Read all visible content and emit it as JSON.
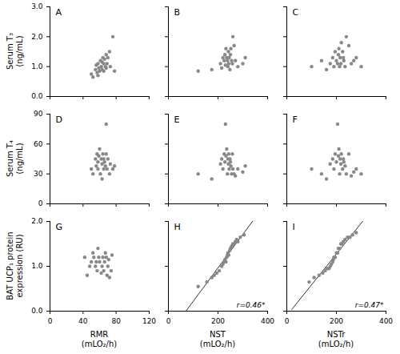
{
  "chart_data": [
    {
      "type": "scatter",
      "title": "A",
      "ylabel": "Serum T₃\n(ng/mL)",
      "color": "#888888",
      "tick_labels": "y",
      "x": [
        50,
        52,
        55,
        56,
        57,
        58,
        58,
        59,
        60,
        61,
        62,
        63,
        63,
        64,
        65,
        65,
        66,
        67,
        68,
        68,
        69,
        70,
        72,
        73,
        76,
        78
      ],
      "values": [
        0.75,
        0.65,
        0.9,
        1.05,
        0.8,
        0.7,
        1.1,
        0.95,
        0.85,
        1.2,
        1.0,
        1.15,
        0.9,
        1.3,
        1.1,
        0.85,
        1.25,
        1.0,
        1.4,
        0.95,
        1.1,
        1.3,
        1.5,
        1.0,
        2.0,
        0.85
      ],
      "xlim": [
        0,
        120
      ],
      "xticks": [
        0,
        40,
        80,
        120
      ],
      "ylim": [
        0,
        3
      ],
      "yticks": [
        0,
        1,
        2,
        3
      ]
    },
    {
      "type": "scatter",
      "title": "B",
      "color": "#888888",
      "tick_labels": false,
      "x": [
        120,
        175,
        210,
        215,
        220,
        225,
        228,
        230,
        232,
        235,
        238,
        240,
        242,
        243,
        245,
        248,
        250,
        252,
        255,
        258,
        260,
        265,
        270,
        280,
        300,
        310
      ],
      "values": [
        0.85,
        0.9,
        1.1,
        0.95,
        1.3,
        1.2,
        1.4,
        1.05,
        1.6,
        1.3,
        1.2,
        1.0,
        1.5,
        1.1,
        1.3,
        0.9,
        1.4,
        1.6,
        1.2,
        1.1,
        2.0,
        1.7,
        1.2,
        1.0,
        1.1,
        1.3
      ],
      "xlim": [
        0,
        400
      ],
      "xticks": [
        0,
        200,
        400
      ],
      "ylim": [
        0,
        3
      ],
      "yticks": [
        0,
        1,
        2,
        3
      ]
    },
    {
      "type": "scatter",
      "title": "C",
      "color": "#888888",
      "tick_labels": false,
      "x": [
        100,
        140,
        160,
        175,
        185,
        190,
        195,
        200,
        205,
        208,
        210,
        213,
        215,
        218,
        220,
        225,
        228,
        230,
        235,
        240,
        250,
        260,
        270,
        280,
        300
      ],
      "values": [
        1.0,
        1.2,
        0.9,
        1.1,
        1.3,
        1.0,
        1.5,
        1.2,
        1.1,
        1.4,
        1.6,
        1.0,
        1.3,
        1.1,
        1.8,
        1.5,
        1.3,
        1.2,
        1.0,
        2.0,
        1.7,
        1.1,
        1.2,
        1.3,
        1.0
      ],
      "xlim": [
        0,
        400
      ],
      "xticks": [
        0,
        200,
        400
      ],
      "ylim": [
        0,
        3
      ],
      "yticks": [
        0,
        1,
        2,
        3
      ]
    },
    {
      "type": "scatter",
      "title": "D",
      "ylabel": "Serum T₄\n(ng/mL)",
      "color": "#888888",
      "tick_labels": "y",
      "x": [
        50,
        52,
        55,
        56,
        57,
        58,
        58,
        59,
        60,
        61,
        62,
        63,
        63,
        64,
        65,
        65,
        66,
        67,
        68,
        68,
        69,
        70,
        72,
        73,
        76,
        78
      ],
      "values": [
        35,
        30,
        45,
        38,
        50,
        42,
        35,
        48,
        55,
        30,
        45,
        40,
        25,
        50,
        35,
        45,
        42,
        38,
        80,
        50,
        35,
        45,
        30,
        40,
        35,
        38
      ],
      "xlim": [
        0,
        120
      ],
      "xticks": [
        0,
        40,
        80,
        120
      ],
      "ylim": [
        0,
        90
      ],
      "yticks": [
        0,
        30,
        60,
        90
      ]
    },
    {
      "type": "scatter",
      "title": "E",
      "color": "#888888",
      "tick_labels": false,
      "x": [
        120,
        175,
        210,
        215,
        220,
        225,
        228,
        230,
        232,
        235,
        238,
        240,
        242,
        243,
        245,
        248,
        250,
        252,
        255,
        258,
        260,
        265,
        270,
        280,
        300,
        310
      ],
      "values": [
        30,
        25,
        40,
        45,
        35,
        50,
        42,
        80,
        48,
        55,
        30,
        45,
        40,
        50,
        35,
        45,
        42,
        38,
        30,
        50,
        35,
        30,
        28,
        35,
        32,
        38
      ],
      "xlim": [
        0,
        400
      ],
      "xticks": [
        0,
        200,
        400
      ],
      "ylim": [
        0,
        90
      ],
      "yticks": [
        0,
        30,
        60,
        90
      ]
    },
    {
      "type": "scatter",
      "title": "F",
      "color": "#888888",
      "tick_labels": false,
      "x": [
        100,
        140,
        160,
        175,
        185,
        190,
        195,
        200,
        205,
        208,
        210,
        213,
        215,
        218,
        220,
        225,
        228,
        230,
        235,
        240,
        250,
        260,
        270,
        280,
        300
      ],
      "values": [
        35,
        30,
        25,
        40,
        45,
        35,
        50,
        42,
        80,
        48,
        55,
        30,
        45,
        40,
        50,
        35,
        45,
        42,
        38,
        30,
        50,
        28,
        32,
        35,
        30
      ],
      "xlim": [
        0,
        400
      ],
      "xticks": [
        0,
        200,
        400
      ],
      "ylim": [
        0,
        90
      ],
      "yticks": [
        0,
        30,
        60,
        90
      ]
    },
    {
      "type": "scatter",
      "title": "G",
      "ylabel": "BAT UCP₁ protein\nexpression (RU)",
      "xlabel": "RMR\n(mLO₂/h)",
      "color": "#888888",
      "tick_labels": true,
      "x": [
        42,
        45,
        48,
        50,
        52,
        53,
        55,
        56,
        57,
        58,
        59,
        60,
        62,
        63,
        64,
        65,
        66,
        67,
        68,
        69,
        70,
        71,
        72,
        74,
        75
      ],
      "values": [
        1.2,
        0.8,
        1.0,
        1.1,
        1.3,
        1.2,
        1.0,
        1.1,
        0.9,
        1.4,
        1.2,
        1.1,
        0.85,
        1.0,
        1.2,
        0.9,
        1.1,
        1.3,
        1.2,
        0.8,
        1.0,
        1.15,
        0.75,
        0.9,
        1.25
      ],
      "xlim": [
        0,
        120
      ],
      "xticks": [
        0,
        40,
        80,
        120
      ],
      "ylim": [
        0,
        2
      ],
      "yticks": [
        0,
        1,
        2
      ]
    },
    {
      "type": "scatter",
      "title": "H",
      "xlabel": "NST\n(mLO₂/h)",
      "color": "#888888",
      "tick_labels": "x",
      "x": [
        120,
        155,
        175,
        185,
        195,
        205,
        215,
        220,
        225,
        228,
        232,
        235,
        238,
        240,
        243,
        247,
        250,
        255,
        260,
        265,
        270,
        275,
        280,
        290,
        305
      ],
      "values": [
        0.55,
        0.65,
        0.75,
        0.8,
        0.85,
        0.9,
        1.0,
        1.05,
        1.1,
        1.15,
        1.1,
        1.2,
        1.25,
        1.3,
        1.25,
        1.35,
        1.4,
        1.45,
        1.5,
        1.5,
        1.55,
        1.6,
        1.55,
        1.65,
        1.7
      ],
      "trend_line": {
        "x": [
          20,
          370
        ],
        "values": [
          -0.37765,
          2.23292
        ],
        "color": "#333333"
      },
      "annotations": [
        "r=0.46*"
      ],
      "xlim": [
        0,
        400
      ],
      "xticks": [
        0,
        200,
        400
      ],
      "ylim": [
        0,
        2
      ],
      "yticks": [
        0,
        1,
        2
      ]
    },
    {
      "type": "scatter",
      "title": "I",
      "xlabel": "NSTr\n(mLO₂/h)",
      "color": "#888888",
      "tick_labels": "x",
      "x": [
        90,
        110,
        130,
        145,
        155,
        163,
        170,
        175,
        180,
        185,
        188,
        190,
        195,
        200,
        205,
        208,
        213,
        218,
        222,
        228,
        235,
        245,
        255,
        265,
        280
      ],
      "values": [
        0.65,
        0.75,
        0.8,
        0.85,
        0.9,
        0.95,
        0.95,
        1.0,
        1.05,
        1.1,
        1.15,
        1.2,
        1.2,
        1.3,
        1.3,
        1.4,
        1.4,
        1.5,
        1.5,
        1.55,
        1.6,
        1.65,
        1.65,
        1.7,
        1.75
      ],
      "trend_line": {
        "x": [
          20,
          370
        ],
        "values": [
          0.0389,
          2.44284
        ],
        "color": "#333333"
      },
      "annotations": [
        "r=0.47*"
      ],
      "xlim": [
        0,
        400
      ],
      "xticks": [
        0,
        200,
        400
      ],
      "ylim": [
        0,
        2
      ],
      "yticks": [
        0,
        1,
        2
      ]
    }
  ]
}
